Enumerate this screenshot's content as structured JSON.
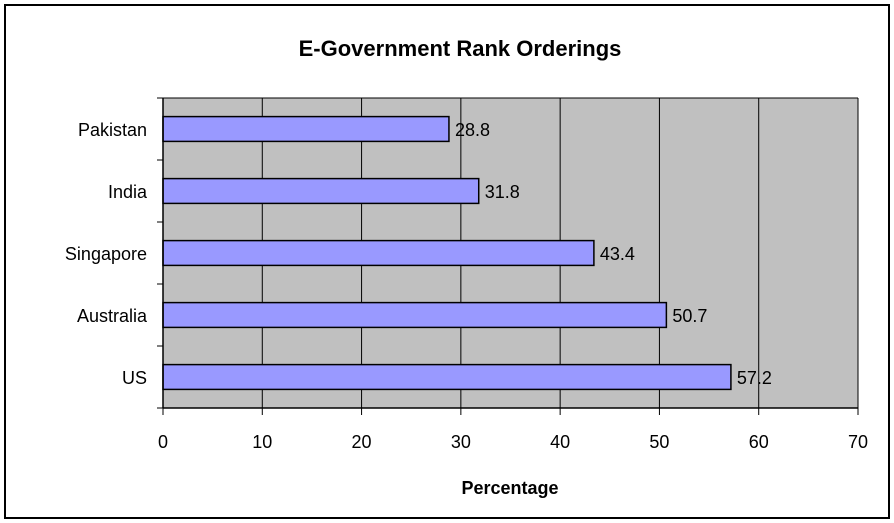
{
  "chart_data": {
    "type": "bar",
    "orientation": "horizontal",
    "title": "E-Government Rank Orderings",
    "xlabel": "Percentage",
    "ylabel": "",
    "categories": [
      "Pakistan",
      "India",
      "Singapore",
      "Australia",
      "US"
    ],
    "values": [
      28.8,
      31.8,
      43.4,
      50.7,
      57.2
    ],
    "data_labels": [
      "28.8",
      "31.8",
      "43.4",
      "50.7",
      "57.2"
    ],
    "xlim": [
      0,
      70
    ],
    "x_ticks": [
      0,
      10,
      20,
      30,
      40,
      50,
      60,
      70
    ],
    "x_tick_labels": [
      "0",
      "10",
      "20",
      "30",
      "40",
      "50",
      "60",
      "70"
    ],
    "grid": "vertical",
    "legend": "none",
    "colors": {
      "bar_fill": "#9999ff",
      "bar_stroke": "#000000",
      "plot_background": "#c0c0c0",
      "gridline": "#000000",
      "frame": "#000000"
    }
  }
}
